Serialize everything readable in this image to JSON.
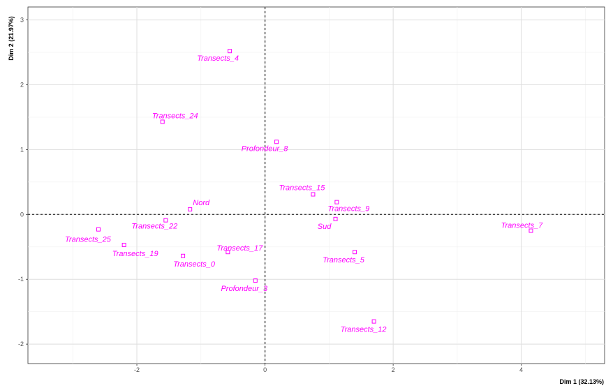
{
  "chart_data": {
    "type": "scatter",
    "title": "",
    "xlabel": "Dim 1 (32.13%)",
    "ylabel": "Dim 2 (21.97%)",
    "xlim": [
      -3.7,
      5.3
    ],
    "ylim": [
      -2.3,
      3.2
    ],
    "x_ticks": [
      -2,
      0,
      2,
      4
    ],
    "y_ticks": [
      -2,
      -1,
      0,
      1,
      2,
      3
    ],
    "x_tick_labels": [
      "-2",
      "0",
      "2",
      "4"
    ],
    "y_tick_labels": [
      "-2",
      "-1",
      "0",
      "1",
      "2",
      "3"
    ],
    "grid": true,
    "reference_lines": {
      "x": 0,
      "y": 0,
      "style": "dashed"
    },
    "point_color": "#ff00ff",
    "points": [
      {
        "label": "Transects_4",
        "x": -0.55,
        "y": 2.52
      },
      {
        "label": "Transects_24",
        "x": -1.6,
        "y": 1.43
      },
      {
        "label": "Profondeur_8",
        "x": 0.18,
        "y": 1.12
      },
      {
        "label": "Transects_15",
        "x": 0.75,
        "y": 0.31
      },
      {
        "label": "Transects_9",
        "x": 1.12,
        "y": 0.19
      },
      {
        "label": "Sud",
        "x": 1.1,
        "y": -0.07
      },
      {
        "label": "Nord",
        "x": -1.17,
        "y": 0.08
      },
      {
        "label": "Transects_22",
        "x": -1.55,
        "y": -0.09
      },
      {
        "label": "Transects_25",
        "x": -2.6,
        "y": -0.23
      },
      {
        "label": "Transects_19",
        "x": -2.2,
        "y": -0.47
      },
      {
        "label": "Transects_0",
        "x": -1.28,
        "y": -0.64
      },
      {
        "label": "Transects_17",
        "x": -0.58,
        "y": -0.58
      },
      {
        "label": "Profondeur_3",
        "x": -0.15,
        "y": -1.02
      },
      {
        "label": "Transects_5",
        "x": 1.4,
        "y": -0.58
      },
      {
        "label": "Transects_12",
        "x": 1.7,
        "y": -1.65
      },
      {
        "label": "Transects_7",
        "x": 4.15,
        "y": -0.25
      }
    ]
  }
}
